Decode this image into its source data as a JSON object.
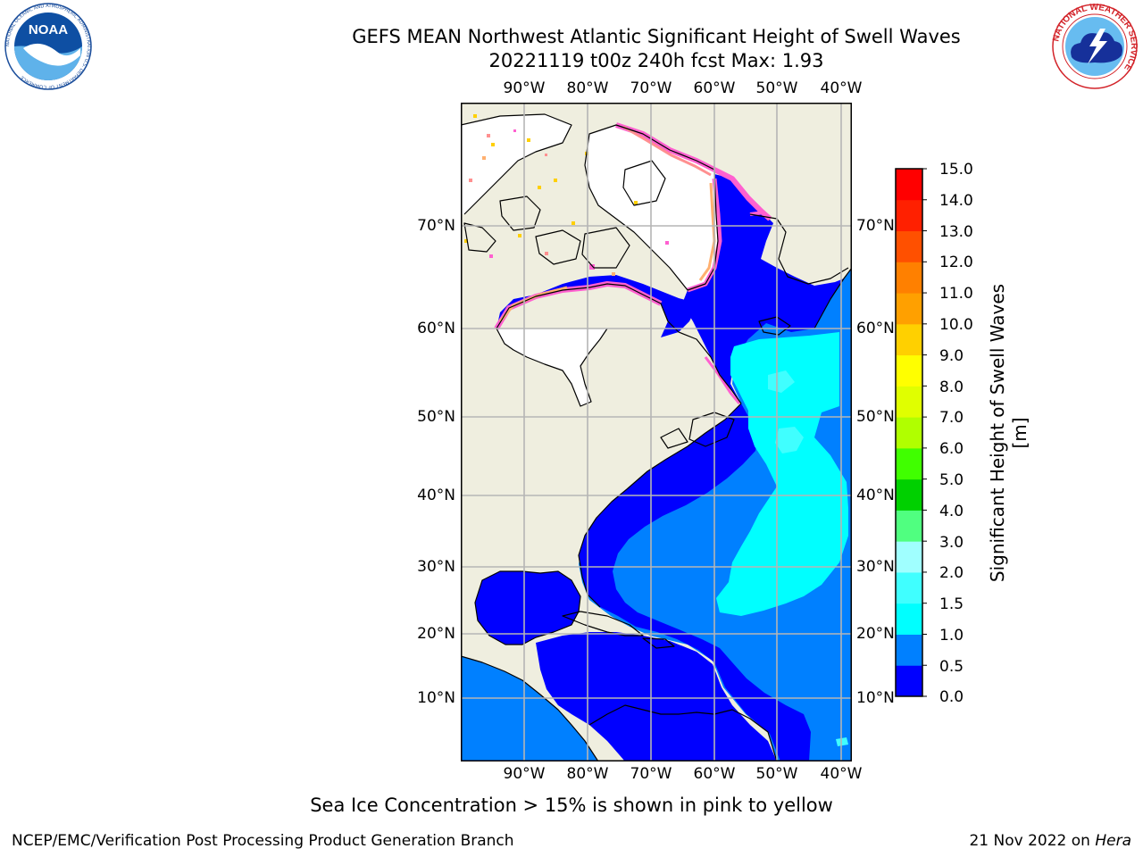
{
  "header": {
    "title_line1": "GEFS MEAN Northwest Atlantic Significant Height of Swell Waves",
    "title_line2": "20221119 t00z 240h fcst   Max: 1.93"
  },
  "logos": {
    "noaa_text": "NOAA",
    "noaa_ring_text": "NATIONAL OCEANIC AND ATMOSPHERIC ADMINISTRATION U.S. DEPARTMENT OF COMMERCE",
    "nws_ring_text": "NATIONAL WEATHER SERVICE"
  },
  "map": {
    "lon_labels": [
      "90°W",
      "80°W",
      "70°W",
      "60°W",
      "50°W",
      "40°W"
    ],
    "lat_labels": [
      "70°N",
      "60°N",
      "50°N",
      "40°N",
      "30°N",
      "20°N",
      "10°N"
    ],
    "colors": {
      "land": "#efeedf",
      "frame": "#000000",
      "grid": "#b5b5b5",
      "ice": "#ffffff"
    }
  },
  "colorbar": {
    "label": "Significant Height of Swell Waves [m]",
    "ticks": [
      "15.0",
      "14.0",
      "13.0",
      "12.0",
      "11.0",
      "10.0",
      "9.0",
      "8.0",
      "7.0",
      "6.0",
      "5.0",
      "4.0",
      "3.0",
      "2.0",
      "1.5",
      "1.0",
      "0.5",
      "0.0"
    ],
    "colors_bottom_to_top": [
      "#0000ff",
      "#0080ff",
      "#00ffff",
      "#40ffff",
      "#a0ffff",
      "#50ff80",
      "#00d000",
      "#40ff00",
      "#b0ff00",
      "#e0ff00",
      "#ffff00",
      "#ffd000",
      "#ffa000",
      "#ff8000",
      "#ff5000",
      "#ff2000",
      "#ff0000"
    ]
  },
  "footer": {
    "note": "Sea Ice Concentration > 15% is shown in pink to yellow",
    "left": "NCEP/EMC/Verification Post Processing Product Generation Branch",
    "date": "21 Nov 2022 on",
    "machine": "Hera"
  }
}
